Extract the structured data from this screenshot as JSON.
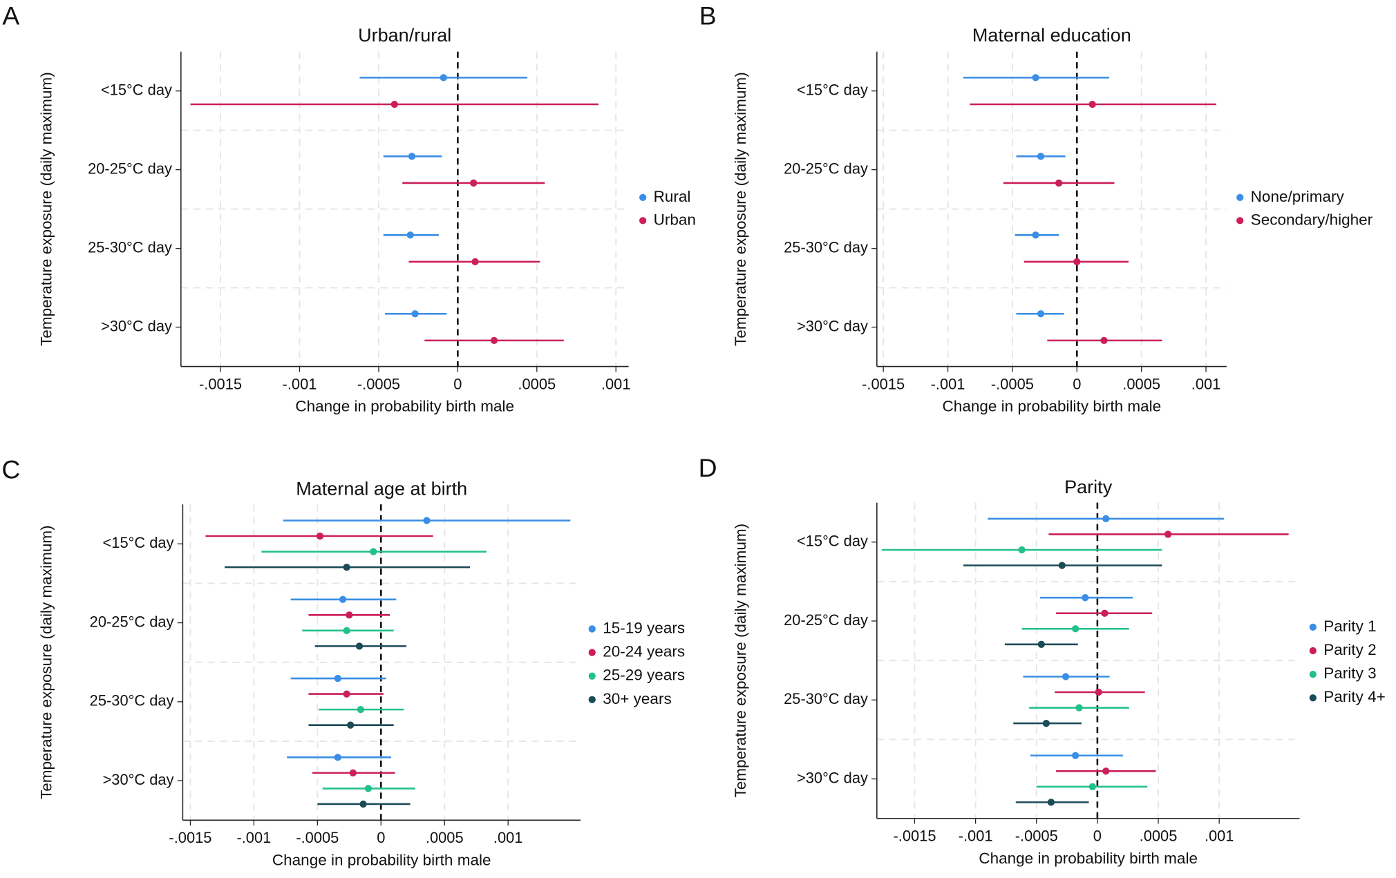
{
  "chart_data": [
    {
      "type": "forest",
      "panel_label": "A",
      "title": "Urban/rural",
      "x_label": "Change in probability birth male",
      "y_label": "Temperature exposure (daily maximum)",
      "categories": [
        "<15°C day",
        "20-25°C day",
        "25-30°C day",
        ">30°C day"
      ],
      "series": [
        {
          "name": "Rural",
          "color": "#3a8ee6",
          "values": [
            -9e-05,
            -0.00029,
            -0.0003,
            -0.00027
          ],
          "lower": [
            -0.00062,
            -0.00047,
            -0.00047,
            -0.00046
          ],
          "upper": [
            0.00044,
            -0.0001,
            -0.00012,
            -7e-05
          ]
        },
        {
          "name": "Urban",
          "color": "#cc1f5a",
          "values": [
            -0.0004,
            0.0001,
            0.00011,
            0.00023
          ],
          "lower": [
            -0.00169,
            -0.00035,
            -0.00031,
            -0.00021
          ],
          "upper": [
            0.00089,
            0.00055,
            0.00052,
            0.00067
          ]
        }
      ],
      "xlim": [
        -0.00175,
        0.00108
      ],
      "xticks": [
        {
          "value": -0.0015,
          "label": "-.0015"
        },
        {
          "value": -0.001,
          "label": "-.001"
        },
        {
          "value": -0.0005,
          "label": "-.0005"
        },
        0,
        {
          "value": 0.0005,
          "label": ".0005"
        },
        {
          "value": 0.001,
          "label": ".001"
        }
      ],
      "reference_line": 0,
      "grid": true,
      "legend": "right"
    },
    {
      "type": "forest",
      "panel_label": "B",
      "title": "Maternal education",
      "x_label": "Change in probability birth male",
      "y_label": "Temperature exposure (daily maximum)",
      "categories": [
        "<15°C day",
        "20-25°C day",
        "25-30°C day",
        ">30°C day"
      ],
      "series": [
        {
          "name": "None/primary",
          "color": "#3a8ee6",
          "values": [
            -0.00032,
            -0.00028,
            -0.00032,
            -0.00028
          ],
          "lower": [
            -0.00088,
            -0.00047,
            -0.00048,
            -0.00047
          ],
          "upper": [
            0.00025,
            -9e-05,
            -0.00014,
            -0.0001
          ]
        },
        {
          "name": "Secondary/higher",
          "color": "#cc1f5a",
          "values": [
            0.00012,
            -0.00014,
            0.0,
            0.00021
          ],
          "lower": [
            -0.00083,
            -0.00057,
            -0.00041,
            -0.00023
          ],
          "upper": [
            0.00108,
            0.00029,
            0.0004,
            0.00066
          ]
        }
      ],
      "xlim": [
        -0.00155,
        0.00116
      ],
      "xticks": [
        {
          "value": -0.0015,
          "label": "-.0015"
        },
        {
          "value": -0.001,
          "label": "-.001"
        },
        {
          "value": -0.0005,
          "label": "-.0005"
        },
        0,
        {
          "value": 0.0005,
          "label": ".0005"
        },
        {
          "value": 0.001,
          "label": ".001"
        }
      ],
      "reference_line": 0,
      "grid": true,
      "legend": "right"
    },
    {
      "type": "forest",
      "panel_label": "C",
      "title": "Maternal age at birth",
      "x_label": "Change in probability birth male",
      "y_label": "Temperature exposure (daily maximum)",
      "categories": [
        "<15°C day",
        "20-25°C day",
        "25-30°C day",
        ">30°C day"
      ],
      "series": [
        {
          "name": "15-19 years",
          "color": "#3a8ee6",
          "values": [
            0.00036,
            -0.0003,
            -0.00034,
            -0.00034
          ],
          "lower": [
            -0.00077,
            -0.00071,
            -0.00071,
            -0.00074
          ],
          "upper": [
            0.00149,
            0.00012,
            4e-05,
            8e-05
          ]
        },
        {
          "name": "20-24 years",
          "color": "#cc1f5a",
          "values": [
            -0.00048,
            -0.00025,
            -0.00027,
            -0.00022
          ],
          "lower": [
            -0.00138,
            -0.00057,
            -0.00057,
            -0.00054
          ],
          "upper": [
            0.00041,
            7e-05,
            2e-05,
            0.00011
          ]
        },
        {
          "name": "25-29 years",
          "color": "#22c08c",
          "values": [
            -6e-05,
            -0.00027,
            -0.00016,
            -0.0001
          ],
          "lower": [
            -0.00094,
            -0.00062,
            -0.00049,
            -0.00046
          ],
          "upper": [
            0.00083,
            0.0001,
            0.00018,
            0.00027
          ]
        },
        {
          "name": "30+ years",
          "color": "#1b4b57",
          "values": [
            -0.00027,
            -0.00017,
            -0.00024,
            -0.00014
          ],
          "lower": [
            -0.00123,
            -0.00052,
            -0.00057,
            -0.0005
          ],
          "upper": [
            0.0007,
            0.0002,
            0.0001,
            0.00023
          ]
        }
      ],
      "xlim": [
        -0.00156,
        0.00157
      ],
      "xticks": [
        {
          "value": -0.0015,
          "label": "-.0015"
        },
        {
          "value": -0.001,
          "label": "-.001"
        },
        {
          "value": -0.0005,
          "label": "-.0005"
        },
        0,
        {
          "value": 0.0005,
          "label": ".0005"
        },
        {
          "value": 0.001,
          "label": ".001"
        }
      ],
      "reference_line": 0,
      "grid": true,
      "legend": "right"
    },
    {
      "type": "forest",
      "panel_label": "D",
      "title": "Parity",
      "x_label": "Change in probability birth male",
      "y_label": "Temperature exposure (daily maximum)",
      "categories": [
        "<15°C day",
        "20-25°C day",
        "25-30°C day",
        ">30°C day"
      ],
      "series": [
        {
          "name": "Parity 1",
          "color": "#3a8ee6",
          "values": [
            7e-05,
            -0.0001,
            -0.00026,
            -0.00018
          ],
          "lower": [
            -0.0009,
            -0.00047,
            -0.00061,
            -0.00055
          ],
          "upper": [
            0.00104,
            0.00029,
            0.0001,
            0.00021
          ]
        },
        {
          "name": "Parity 2",
          "color": "#cc1f5a",
          "values": [
            0.00058,
            6e-05,
            1e-05,
            7e-05
          ],
          "lower": [
            -0.0004,
            -0.00034,
            -0.00035,
            -0.00034
          ],
          "upper": [
            0.00157,
            0.00045,
            0.00039,
            0.00048
          ]
        },
        {
          "name": "Parity 3",
          "color": "#22c08c",
          "values": [
            -0.00062,
            -0.00018,
            -0.00015,
            -4e-05
          ],
          "lower": [
            -0.00177,
            -0.00062,
            -0.00056,
            -0.0005
          ],
          "upper": [
            0.00053,
            0.00026,
            0.00026,
            0.00041
          ]
        },
        {
          "name": "Parity 4+",
          "color": "#1b4b57",
          "values": [
            -0.00029,
            -0.00046,
            -0.00042,
            -0.00038
          ],
          "lower": [
            -0.0011,
            -0.00076,
            -0.00069,
            -0.00067
          ],
          "upper": [
            0.00053,
            -0.00016,
            -0.00013,
            -7e-05
          ]
        }
      ],
      "xlim": [
        -0.00181,
        0.00166
      ],
      "xticks": [
        {
          "value": -0.0015,
          "label": "-.0015"
        },
        {
          "value": -0.001,
          "label": "-.001"
        },
        {
          "value": -0.0005,
          "label": "-.0005"
        },
        0,
        {
          "value": 0.0005,
          "label": ".0005"
        },
        {
          "value": 0.001,
          "label": ".001"
        }
      ],
      "reference_line": 0,
      "grid": true,
      "legend": "right"
    }
  ]
}
